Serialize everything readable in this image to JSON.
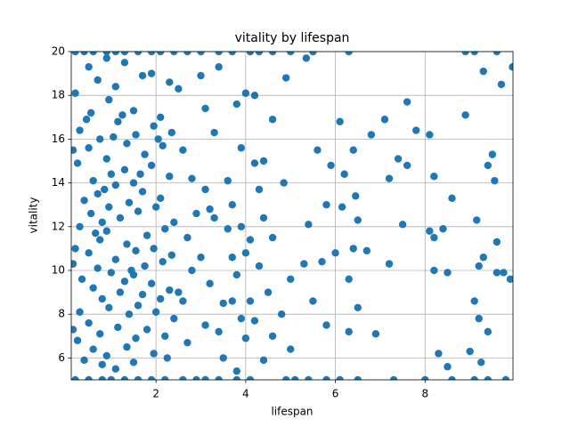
{
  "chart_data": {
    "type": "scatter",
    "title": "vitality by lifespan",
    "x_label": "lifespan",
    "y_label": "vitality",
    "color": "#1f77b4",
    "grid": true,
    "xlim": [
      0.11,
      9.96
    ],
    "ylim": [
      5,
      20
    ],
    "xticks": [
      2,
      4,
      6,
      8
    ],
    "yticks": [
      6,
      8,
      10,
      12,
      14,
      16,
      18,
      20
    ],
    "x": [
      0.2,
      0.4,
      0.6,
      0.9,
      1.1,
      1.3,
      1.6,
      1.9,
      2.1,
      2.4,
      2.7,
      3.0,
      3.4,
      3.7,
      4.1,
      4.3,
      4.6,
      5.0,
      5.5,
      6.3,
      8.9,
      9.1,
      9.6,
      0.2,
      0.5,
      0.8,
      1.0,
      1.3,
      1.6,
      1.9,
      2.2,
      2.6,
      2.9,
      3.1,
      3.4,
      3.8,
      4.1,
      4.9,
      5.1,
      5.4,
      5.8,
      6.1,
      6.5,
      7.3,
      8.0,
      8.6,
      9.1,
      9.4,
      9.8,
      4.2,
      4.4,
      4.3,
      4.4,
      4.6,
      4.3,
      4.5,
      4.8,
      4.6,
      4.4,
      4.9,
      4.85,
      4.6,
      5.0,
      5.0,
      5.3,
      5.4,
      5.35,
      5.5,
      5.6,
      5.7,
      5.8,
      5.9,
      5.8,
      6.0,
      6.1,
      6.15,
      6.2,
      6.3,
      6.3,
      6.4,
      6.4,
      6.45,
      6.5,
      6.5,
      6.7,
      6.9,
      6.8,
      7.1,
      7.2,
      7.2,
      7.4,
      7.5,
      7.6,
      7.6,
      7.8,
      8.1,
      8.1,
      8.2,
      8.2,
      8.2,
      8.3,
      8.4,
      8.6,
      8.5,
      8.5,
      8.9,
      9.0,
      9.1,
      9.15,
      9.2,
      9.2,
      9.3,
      9.3,
      9.25,
      9.4,
      9.5,
      9.55,
      9.6,
      9.6,
      9.7,
      9.75,
      9.9,
      9.95,
      9.4,
      2.5,
      2.6,
      2.8,
      2.7,
      2.8,
      2.6,
      2.7,
      3.0,
      3.1,
      3.2,
      3.0,
      3.2,
      3.1,
      3.3,
      3.4,
      3.5,
      3.6,
      3.6,
      3.7,
      3.8,
      3.8,
      3.9,
      3.7,
      3.9,
      4.0,
      4.0,
      4.1,
      4.2,
      3.5,
      3.9,
      4.1,
      3.3,
      2.9,
      3.1,
      2.5,
      3.4,
      3.7,
      4.0,
      4.2,
      3.8,
      0.2,
      0.3,
      0.25,
      0.4,
      0.3,
      0.2,
      0.35,
      0.3,
      0.25,
      0.4,
      0.5,
      0.55,
      0.5,
      0.6,
      0.55,
      0.5,
      0.6,
      0.5,
      0.6,
      0.7,
      0.75,
      0.7,
      0.8,
      0.75,
      0.7,
      0.8,
      0.75,
      0.8,
      0.9,
      0.95,
      0.9,
      1.0,
      0.95,
      0.9,
      1.0,
      0.95,
      0.9,
      1.1,
      1.15,
      1.1,
      1.2,
      1.1,
      1.2,
      1.15,
      1.1,
      1.3,
      1.35,
      1.3,
      1.4,
      1.35,
      1.3,
      1.4,
      1.35,
      1.5,
      1.55,
      1.5,
      1.6,
      1.55,
      1.5,
      1.6,
      1.55,
      1.5,
      1.7,
      1.75,
      1.7,
      1.8,
      1.75,
      1.7,
      1.8,
      1.9,
      1.95,
      1.9,
      2.0,
      1.95,
      1.9,
      2.0,
      1.95,
      2.1,
      2.15,
      2.1,
      2.2,
      2.15,
      2.1,
      2.2,
      2.3,
      2.35,
      2.3,
      2.4,
      2.35,
      2.3,
      2.4,
      2.25,
      0.15,
      0.15,
      0.15,
      0.45,
      0.65,
      1.05,
      1.25,
      1.45,
      0.85,
      1.65,
      2.05
    ],
    "values": [
      20,
      20,
      20,
      20,
      20,
      20,
      20,
      20,
      20,
      20,
      20,
      20,
      20,
      20,
      20,
      20,
      20,
      20,
      20,
      20,
      20,
      20,
      20,
      5,
      5,
      5,
      5,
      5,
      5,
      5,
      5,
      5,
      5,
      5,
      5,
      5,
      5,
      5,
      5,
      5,
      5,
      5,
      5,
      5,
      5,
      5,
      5,
      5,
      5,
      18.0,
      15.0,
      13.7,
      12.4,
      11.5,
      10.2,
      9.0,
      8.0,
      7.0,
      5.9,
      18.8,
      14.0,
      16.9,
      9.6,
      6.4,
      10.3,
      12.1,
      19.7,
      8.6,
      15.5,
      10.4,
      13.0,
      14.8,
      7.5,
      10.8,
      16.8,
      12.9,
      14.4,
      7.2,
      9.6,
      15.5,
      11.0,
      13.4,
      12.3,
      8.3,
      10.9,
      7.1,
      16.2,
      16.9,
      10.3,
      14.2,
      15.1,
      12.1,
      17.7,
      14.8,
      16.4,
      16.2,
      11.8,
      10.0,
      14.3,
      11.5,
      6.2,
      11.9,
      13.3,
      5.6,
      9.9,
      17.1,
      6.3,
      8.6,
      12.3,
      10.2,
      7.8,
      19.1,
      10.6,
      5.8,
      14.8,
      15.3,
      14.1,
      9.9,
      11.3,
      18.5,
      9.9,
      9.6,
      19.3,
      7.2,
      18.3,
      15.5,
      14.2,
      11.5,
      10.0,
      8.6,
      6.7,
      18.9,
      17.4,
      12.8,
      10.6,
      9.4,
      7.5,
      12.4,
      19.3,
      8.5,
      14.1,
      11.9,
      10.6,
      17.6,
      9.8,
      7.8,
      13.0,
      12.0,
      18.1,
      10.8,
      8.6,
      14.9,
      6.0,
      15.6,
      11.4,
      16.3,
      12.6,
      13.7,
      9.0,
      7.2,
      8.6,
      6.9,
      7.7,
      5.4,
      18.1,
      16.4,
      14.9,
      13.2,
      12.0,
      11.0,
      9.6,
      8.1,
      6.8,
      5.9,
      19.3,
      17.2,
      15.6,
      14.1,
      12.6,
      10.8,
      9.2,
      7.6,
      6.4,
      18.7,
      16.0,
      13.5,
      12.2,
      11.4,
      10.1,
      8.7,
      7.1,
      5.7,
      19.7,
      17.8,
      15.1,
      14.4,
      12.9,
      11.8,
      9.9,
      8.3,
      6.1,
      18.4,
      16.8,
      13.9,
      12.4,
      10.5,
      9.0,
      7.4,
      5.5,
      19.5,
      15.8,
      14.6,
      13.1,
      11.2,
      9.5,
      8.0,
      6.5,
      17.3,
      16.2,
      14.0,
      12.7,
      10.9,
      9.8,
      8.4,
      6.9,
      5.8,
      18.9,
      15.3,
      13.6,
      11.6,
      10.2,
      8.9,
      7.3,
      19.0,
      16.6,
      14.8,
      12.9,
      11.0,
      9.4,
      8.1,
      6.2,
      17.0,
      15.7,
      13.3,
      11.9,
      10.4,
      8.7,
      7.0,
      18.6,
      16.3,
      14.3,
      12.2,
      10.7,
      9.1,
      7.8,
      6.0,
      15.5,
      10.3,
      7.3,
      16.9,
      11.7,
      16.1,
      17.1,
      10.0,
      13.7,
      14.4,
      16.0
    ]
  }
}
